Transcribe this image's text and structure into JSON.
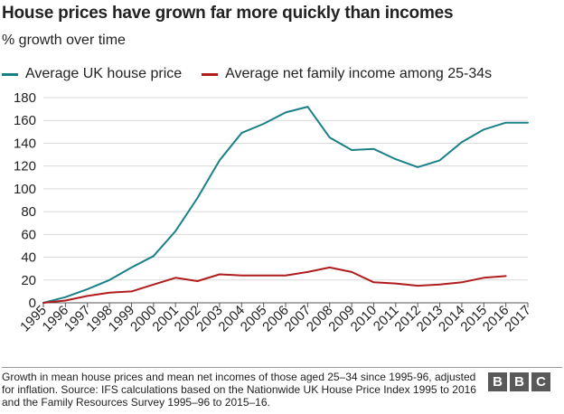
{
  "title": "House prices have grown far more quickly than incomes",
  "subtitle": "% growth over time",
  "source_text": "Growth in mean house prices and mean net incomes of those aged 25–34 since 1995-96, adjusted for inflation. Source: IFS calculations based on the Nationwide UK House Price Index 1995 to 2016 and the Family Resources Survey 1995–96 to 2015–16.",
  "logo": {
    "letters": [
      "B",
      "B",
      "C"
    ]
  },
  "chart_data": {
    "type": "line",
    "title": "House prices have grown far more quickly than incomes",
    "subtitle": "% growth over time",
    "xlabel": "",
    "ylabel": "",
    "x": [
      "1995",
      "1996",
      "1997",
      "1998",
      "1999",
      "2000",
      "2001",
      "2002",
      "2003",
      "2004",
      "2005",
      "2006",
      "2007",
      "2008",
      "2009",
      "2010",
      "2011",
      "2012",
      "2013",
      "2014",
      "2015",
      "2016",
      "2017"
    ],
    "ylim": [
      0,
      180
    ],
    "yticks": [
      0,
      20,
      40,
      60,
      80,
      100,
      120,
      140,
      160,
      180
    ],
    "grid": "horizontal",
    "legend_position": "top-left",
    "series": [
      {
        "name": "Average UK house price",
        "color": "#1a8087",
        "x": [
          1995,
          1996,
          1997,
          1998,
          1999,
          2000,
          2001,
          2002,
          2003,
          2004,
          2005,
          2006,
          2007,
          2008,
          2009,
          2010,
          2011,
          2012,
          2013,
          2014,
          2015,
          2016,
          2017
        ],
        "values": [
          0,
          5,
          12,
          20,
          31,
          41,
          63,
          92,
          125,
          149,
          157,
          167,
          172,
          145,
          134,
          135,
          126,
          119,
          125,
          141,
          152,
          158,
          158
        ]
      },
      {
        "name": "Average net family income among 25-34s",
        "color": "#b01c1c",
        "x": [
          1995,
          1996,
          1997,
          1998,
          1999,
          2000,
          2001,
          2002,
          2003,
          2004,
          2005,
          2006,
          2007,
          2008,
          2009,
          2010,
          2011,
          2012,
          2013,
          2014,
          2015,
          2016
        ],
        "values": [
          0,
          2,
          6,
          9,
          10,
          16,
          22,
          19,
          25,
          24,
          24,
          24,
          27,
          31,
          27,
          18,
          17,
          15,
          16,
          18,
          22,
          23.5
        ]
      }
    ]
  }
}
